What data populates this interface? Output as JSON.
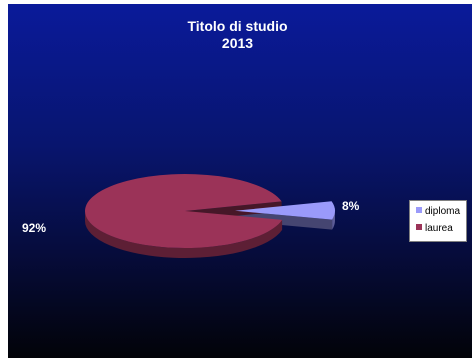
{
  "chart_data": {
    "type": "pie",
    "title": "Titolo di studio",
    "subtitle": "2013",
    "categories": [
      "diploma",
      "laurea"
    ],
    "values": [
      8,
      92
    ],
    "labels": [
      "8%",
      "92%"
    ],
    "colors": [
      "#9a9afa",
      "#9b3358"
    ],
    "legend_position": "right",
    "exploded": "diploma",
    "style": "3d"
  }
}
